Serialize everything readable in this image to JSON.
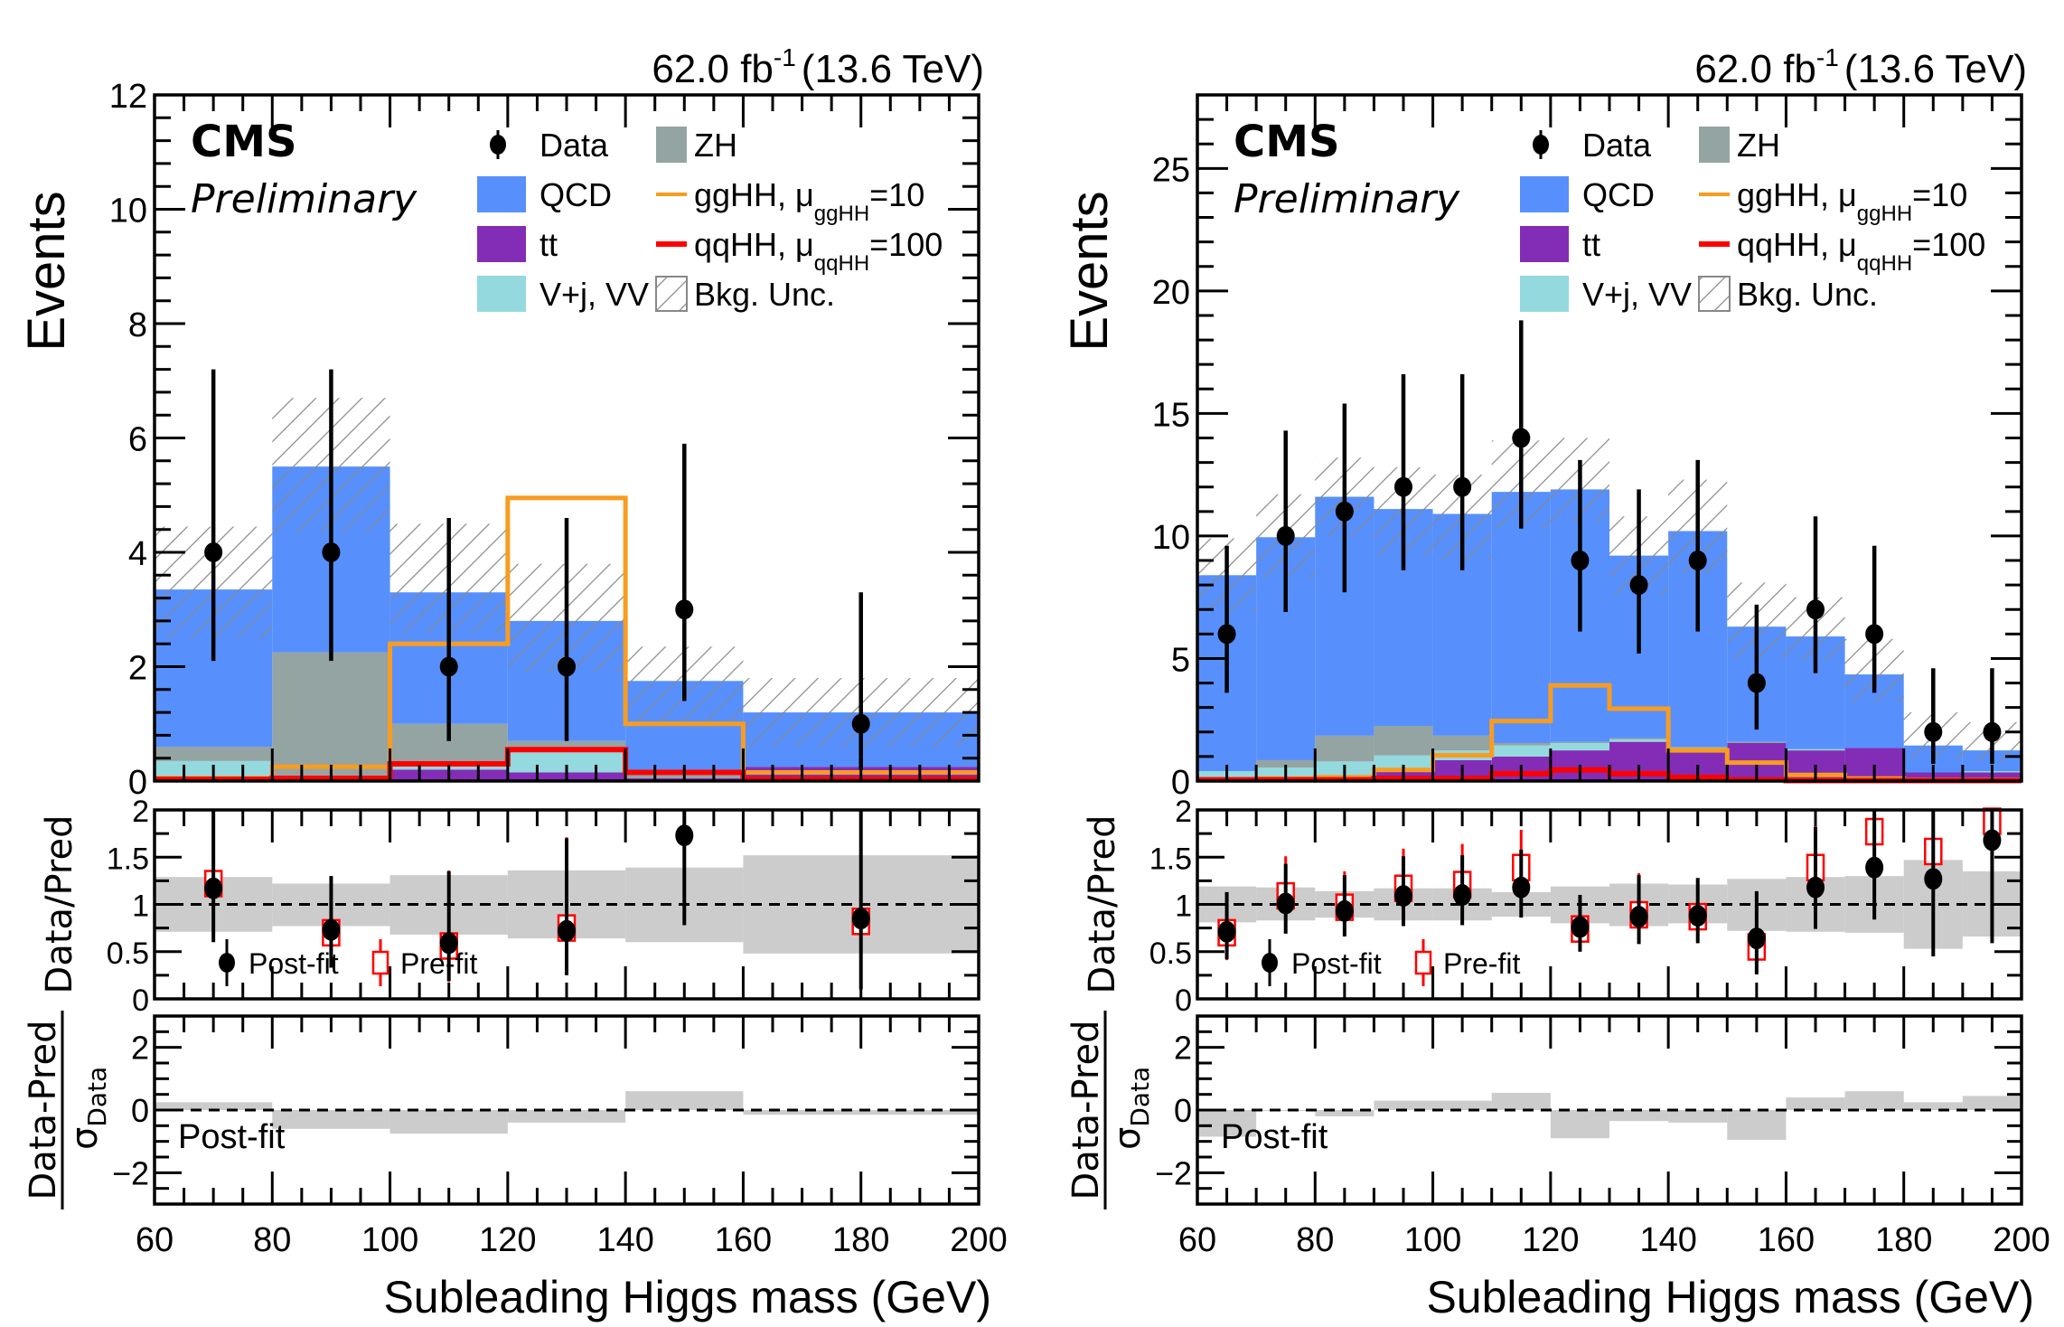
{
  "chart_data": [
    {
      "type": "bar",
      "subtype": "stacked-histogram-with-ratio",
      "panel": "left",
      "title": "",
      "experiment_label": "CMS",
      "status_label": "Preliminary",
      "lumi_label": "62.0 fb",
      "lumi_exponent": "-1",
      "energy_label": "(13.6 TeV)",
      "xlabel": "Subleading Higgs mass (GeV)",
      "ylabel": "Events",
      "xlim": [
        60,
        200
      ],
      "ylim": [
        0,
        12
      ],
      "yticks": [
        0,
        2,
        4,
        6,
        8,
        10,
        12
      ],
      "xticks": [
        60,
        80,
        100,
        120,
        140,
        160,
        180,
        200
      ],
      "bin_edges": [
        60,
        80,
        100,
        120,
        140,
        160,
        200
      ],
      "stack_order": [
        "qqHH_base",
        "tt",
        "Vj_VV",
        "ZH",
        "QCD"
      ],
      "series": [
        {
          "name": "tt",
          "color": "#832db6",
          "values": [
            0.05,
            0.05,
            0.2,
            0.15,
            0.05,
            0.25
          ]
        },
        {
          "name": "V+j, VV",
          "color": "#94d9de",
          "values": [
            0.3,
            0.05,
            0.05,
            0.4,
            0.0,
            0.0
          ]
        },
        {
          "name": "ZH",
          "color": "#94a4a2",
          "values": [
            0.25,
            2.15,
            0.75,
            0.15,
            0.05,
            0.0
          ]
        },
        {
          "name": "QCD",
          "color": "#5790fc",
          "values": [
            2.75,
            3.25,
            2.3,
            2.1,
            1.65,
            0.95
          ]
        }
      ],
      "total_pred": [
        3.35,
        5.5,
        3.3,
        2.8,
        1.75,
        1.2
      ],
      "bkg_unc": {
        "low": [
          2.5,
          4.35,
          2.6,
          1.9,
          1.05,
          0.6
        ],
        "high": [
          4.45,
          6.7,
          4.5,
          3.8,
          2.35,
          1.8
        ]
      },
      "signals": [
        {
          "name": "ggHH, μggHH=10",
          "color": "#f89c20",
          "values": [
            0.05,
            0.25,
            2.4,
            4.95,
            1.0,
            0.15
          ]
        },
        {
          "name": "qqHH, μqqHH=100",
          "color": "#ff0000",
          "values": [
            0.03,
            0.05,
            0.3,
            0.55,
            0.15,
            0.03
          ]
        }
      ],
      "data": {
        "x": [
          70,
          90,
          110,
          130,
          150,
          180
        ],
        "y": [
          4,
          4,
          2,
          2,
          3,
          1
        ],
        "err_low": [
          1.9,
          1.9,
          1.3,
          1.3,
          1.6,
          0.8
        ],
        "err_high": [
          3.2,
          3.2,
          2.6,
          2.6,
          2.9,
          2.3
        ]
      },
      "ratio": {
        "ylabel": "Data/Pred",
        "ylim": [
          0,
          2
        ],
        "yticks": [
          0,
          0.5,
          1,
          1.5,
          2
        ],
        "ytick_labels": [
          "0",
          "0.5",
          "1",
          "1.5",
          "2"
        ],
        "band_low": [
          0.71,
          0.77,
          0.68,
          0.64,
          0.6,
          0.48
        ],
        "band_high": [
          1.29,
          1.22,
          1.31,
          1.36,
          1.39,
          1.52
        ],
        "postfit": {
          "y": [
            1.17,
            0.73,
            0.59,
            0.72,
            1.73,
            0.85
          ],
          "err_low": [
            0.57,
            0.4,
            0.4,
            0.47,
            0.95,
            0.75
          ],
          "err_high": [
            0.83,
            0.57,
            0.76,
            0.98,
            0.27,
            1.15
          ]
        },
        "prefit": {
          "y": [
            1.22,
            0.7,
            0.56,
            0.75,
            null,
            0.82
          ],
          "err_low": [
            0.6,
            0.36,
            0.38,
            0.47,
            null,
            0.7
          ],
          "err_high": [
            0.8,
            0.6,
            0.8,
            0.96,
            null,
            1.18
          ]
        },
        "legend": [
          "Post-fit",
          "Pre-fit"
        ]
      },
      "pull": {
        "ylabel_num": "Data-Pred",
        "ylabel_den": "σ",
        "ylabel_den_sub": "Data",
        "ylim": [
          -3,
          3
        ],
        "yticks": [
          -2,
          0,
          2
        ],
        "ytick_labels": [
          "−2",
          "0",
          "2"
        ],
        "values": [
          0.25,
          -0.6,
          -0.75,
          -0.4,
          0.6,
          -0.15
        ],
        "label": "Post-fit"
      }
    },
    {
      "type": "bar",
      "subtype": "stacked-histogram-with-ratio",
      "panel": "right",
      "title": "",
      "experiment_label": "CMS",
      "status_label": "Preliminary",
      "lumi_label": "62.0 fb",
      "lumi_exponent": "-1",
      "energy_label": "(13.6 TeV)",
      "xlabel": "Subleading Higgs mass (GeV)",
      "ylabel": "Events",
      "xlim": [
        60,
        200
      ],
      "ylim": [
        0,
        28
      ],
      "yticks": [
        0,
        5,
        10,
        15,
        20,
        25
      ],
      "xticks": [
        60,
        80,
        100,
        120,
        140,
        160,
        180,
        200
      ],
      "bin_edges": [
        60,
        70,
        80,
        90,
        100,
        110,
        120,
        130,
        140,
        150,
        160,
        170,
        180,
        190,
        200
      ],
      "series": [
        {
          "name": "tt",
          "color": "#832db6",
          "values": [
            0.0,
            0.1,
            0.2,
            0.5,
            0.85,
            1.0,
            1.25,
            1.6,
            1.3,
            1.55,
            1.25,
            1.35,
            0.35,
            0.35
          ]
        },
        {
          "name": "V+j, VV",
          "color": "#94d9de",
          "values": [
            0.4,
            0.45,
            0.6,
            0.55,
            0.4,
            0.45,
            0.3,
            0.1,
            0.05,
            0.0,
            0.05,
            0.0,
            0.0,
            0.05
          ]
        },
        {
          "name": "ZH",
          "color": "#94a4a2",
          "values": [
            0.0,
            0.3,
            1.05,
            1.2,
            0.6,
            0.1,
            0.05,
            0.05,
            0.05,
            0.05,
            0.0,
            0.0,
            0.0,
            0.0
          ]
        },
        {
          "name": "QCD",
          "color": "#5790fc",
          "values": [
            8.0,
            9.1,
            9.75,
            8.85,
            9.05,
            10.25,
            10.3,
            7.45,
            8.8,
            4.7,
            4.6,
            3.0,
            1.1,
            0.85
          ]
        }
      ],
      "total_pred": [
        8.4,
        9.95,
        11.6,
        11.1,
        10.9,
        11.8,
        11.9,
        9.2,
        10.2,
        6.3,
        5.9,
        4.35,
        1.45,
        1.25
      ],
      "bkg_unc": {
        "low": [
          6.9,
          8.3,
          10.0,
          9.2,
          9.0,
          10.3,
          10.6,
          7.6,
          8.5,
          5.0,
          4.9,
          3.2,
          0.9,
          0.8
        ],
        "high": [
          9.9,
          11.7,
          13.2,
          12.8,
          12.5,
          13.9,
          14.0,
          10.8,
          12.3,
          8.1,
          7.5,
          5.8,
          2.8,
          2.4
        ]
      },
      "signals": [
        {
          "name": "ggHH, μggHH=10",
          "color": "#f89c20",
          "values": [
            0.05,
            0.1,
            0.15,
            0.45,
            1.05,
            2.45,
            3.9,
            2.95,
            1.25,
            0.75,
            0.25,
            0.1,
            0.05,
            0.05
          ]
        },
        {
          "name": "qqHH, μqqHH=100",
          "color": "#ff0000",
          "values": [
            0.05,
            0.05,
            0.05,
            0.1,
            0.1,
            0.3,
            0.45,
            0.3,
            0.15,
            0.05,
            0.02,
            0.02,
            0.02,
            0.02
          ]
        }
      ],
      "data": {
        "x": [
          65,
          75,
          85,
          95,
          105,
          115,
          125,
          135,
          145,
          155,
          165,
          175,
          185,
          195
        ],
        "y": [
          6,
          10,
          11,
          12,
          12,
          14,
          9,
          8,
          9,
          4,
          7,
          6,
          2,
          2
        ],
        "err_low": [
          2.4,
          3.1,
          3.3,
          3.4,
          3.4,
          3.7,
          2.9,
          2.8,
          2.9,
          1.9,
          2.6,
          2.4,
          1.3,
          1.3
        ],
        "err_high": [
          3.6,
          4.3,
          4.4,
          4.6,
          4.6,
          4.8,
          4.1,
          3.9,
          4.1,
          3.2,
          3.8,
          3.6,
          2.6,
          2.6
        ]
      },
      "ratio": {
        "ylabel": "Data/Pred",
        "ylim": [
          0,
          2
        ],
        "yticks": [
          0,
          0.5,
          1,
          1.5,
          2
        ],
        "ytick_labels": [
          "0",
          "0.5",
          "1",
          "1.5",
          "2"
        ],
        "band_low": [
          0.81,
          0.83,
          0.86,
          0.83,
          0.83,
          0.87,
          0.8,
          0.77,
          0.8,
          0.72,
          0.71,
          0.7,
          0.53,
          0.66
        ],
        "band_high": [
          1.19,
          1.18,
          1.14,
          1.17,
          1.17,
          1.13,
          1.19,
          1.22,
          1.21,
          1.27,
          1.29,
          1.3,
          1.47,
          1.35
        ],
        "postfit": {
          "y": [
            0.71,
            1.01,
            0.93,
            1.09,
            1.1,
            1.18,
            0.76,
            0.87,
            0.88,
            0.64,
            1.18,
            1.39,
            1.27,
            1.68
          ],
          "err_low": [
            0.29,
            0.32,
            0.27,
            0.32,
            0.32,
            0.32,
            0.26,
            0.29,
            0.29,
            0.38,
            0.44,
            0.55,
            0.82,
            1.09
          ],
          "err_high": [
            0.42,
            0.42,
            0.38,
            0.42,
            0.42,
            0.4,
            0.34,
            0.44,
            0.4,
            0.5,
            0.64,
            0.61,
            0.73,
            0.32
          ]
        },
        "prefit": {
          "y": [
            0.7,
            1.09,
            0.97,
            1.17,
            1.21,
            1.39,
            0.74,
            0.89,
            0.87,
            0.55,
            1.39,
            1.77,
            1.56,
            1.88
          ],
          "err_low": [
            0.29,
            0.33,
            0.3,
            0.33,
            0.34,
            0.37,
            0.24,
            0.3,
            0.28,
            0.29,
            0.52,
            0.65,
            0.8,
            1.0
          ],
          "err_high": [
            0.4,
            0.42,
            0.38,
            0.42,
            0.43,
            0.4,
            0.33,
            0.44,
            0.4,
            0.5,
            0.61,
            0.23,
            0.44,
            0.12
          ]
        },
        "legend": [
          "Post-fit",
          "Pre-fit"
        ]
      },
      "pull": {
        "ylabel_num": "Data-Pred",
        "ylabel_den": "σ",
        "ylabel_den_sub": "Data",
        "ylim": [
          -3,
          3
        ],
        "yticks": [
          -2,
          0,
          2
        ],
        "ytick_labels": [
          "−2",
          "0",
          "2"
        ],
        "values": [
          -0.85,
          0.0,
          -0.2,
          0.3,
          0.3,
          0.55,
          -0.9,
          -0.35,
          -0.4,
          -0.95,
          0.4,
          0.6,
          0.25,
          0.45
        ],
        "label": "Post-fit"
      }
    }
  ],
  "legend": {
    "col1": [
      {
        "key": "data",
        "label": "Data"
      },
      {
        "key": "qcd",
        "label": "QCD",
        "color": "#5790fc"
      },
      {
        "key": "tt",
        "label": "tt",
        "color": "#832db6"
      },
      {
        "key": "vj",
        "label": "V+j, VV",
        "color": "#94d9de"
      }
    ],
    "col2": [
      {
        "key": "zh",
        "label": "ZH",
        "color": "#94a4a2"
      },
      {
        "key": "gghh",
        "label": "ggHH, μ",
        "sub": "ggHH",
        "suffix": "=10",
        "color": "#f89c20"
      },
      {
        "key": "qqhh",
        "label": "qqHH, μ",
        "sub": "qqHH",
        "suffix": "=100",
        "color": "#ff0000"
      },
      {
        "key": "unc",
        "label": "Bkg. Unc."
      }
    ]
  },
  "colors": {
    "ratio_band": "#cccccc",
    "hatch": "#888888",
    "data": "#000000",
    "prefit": "#ff0000"
  }
}
